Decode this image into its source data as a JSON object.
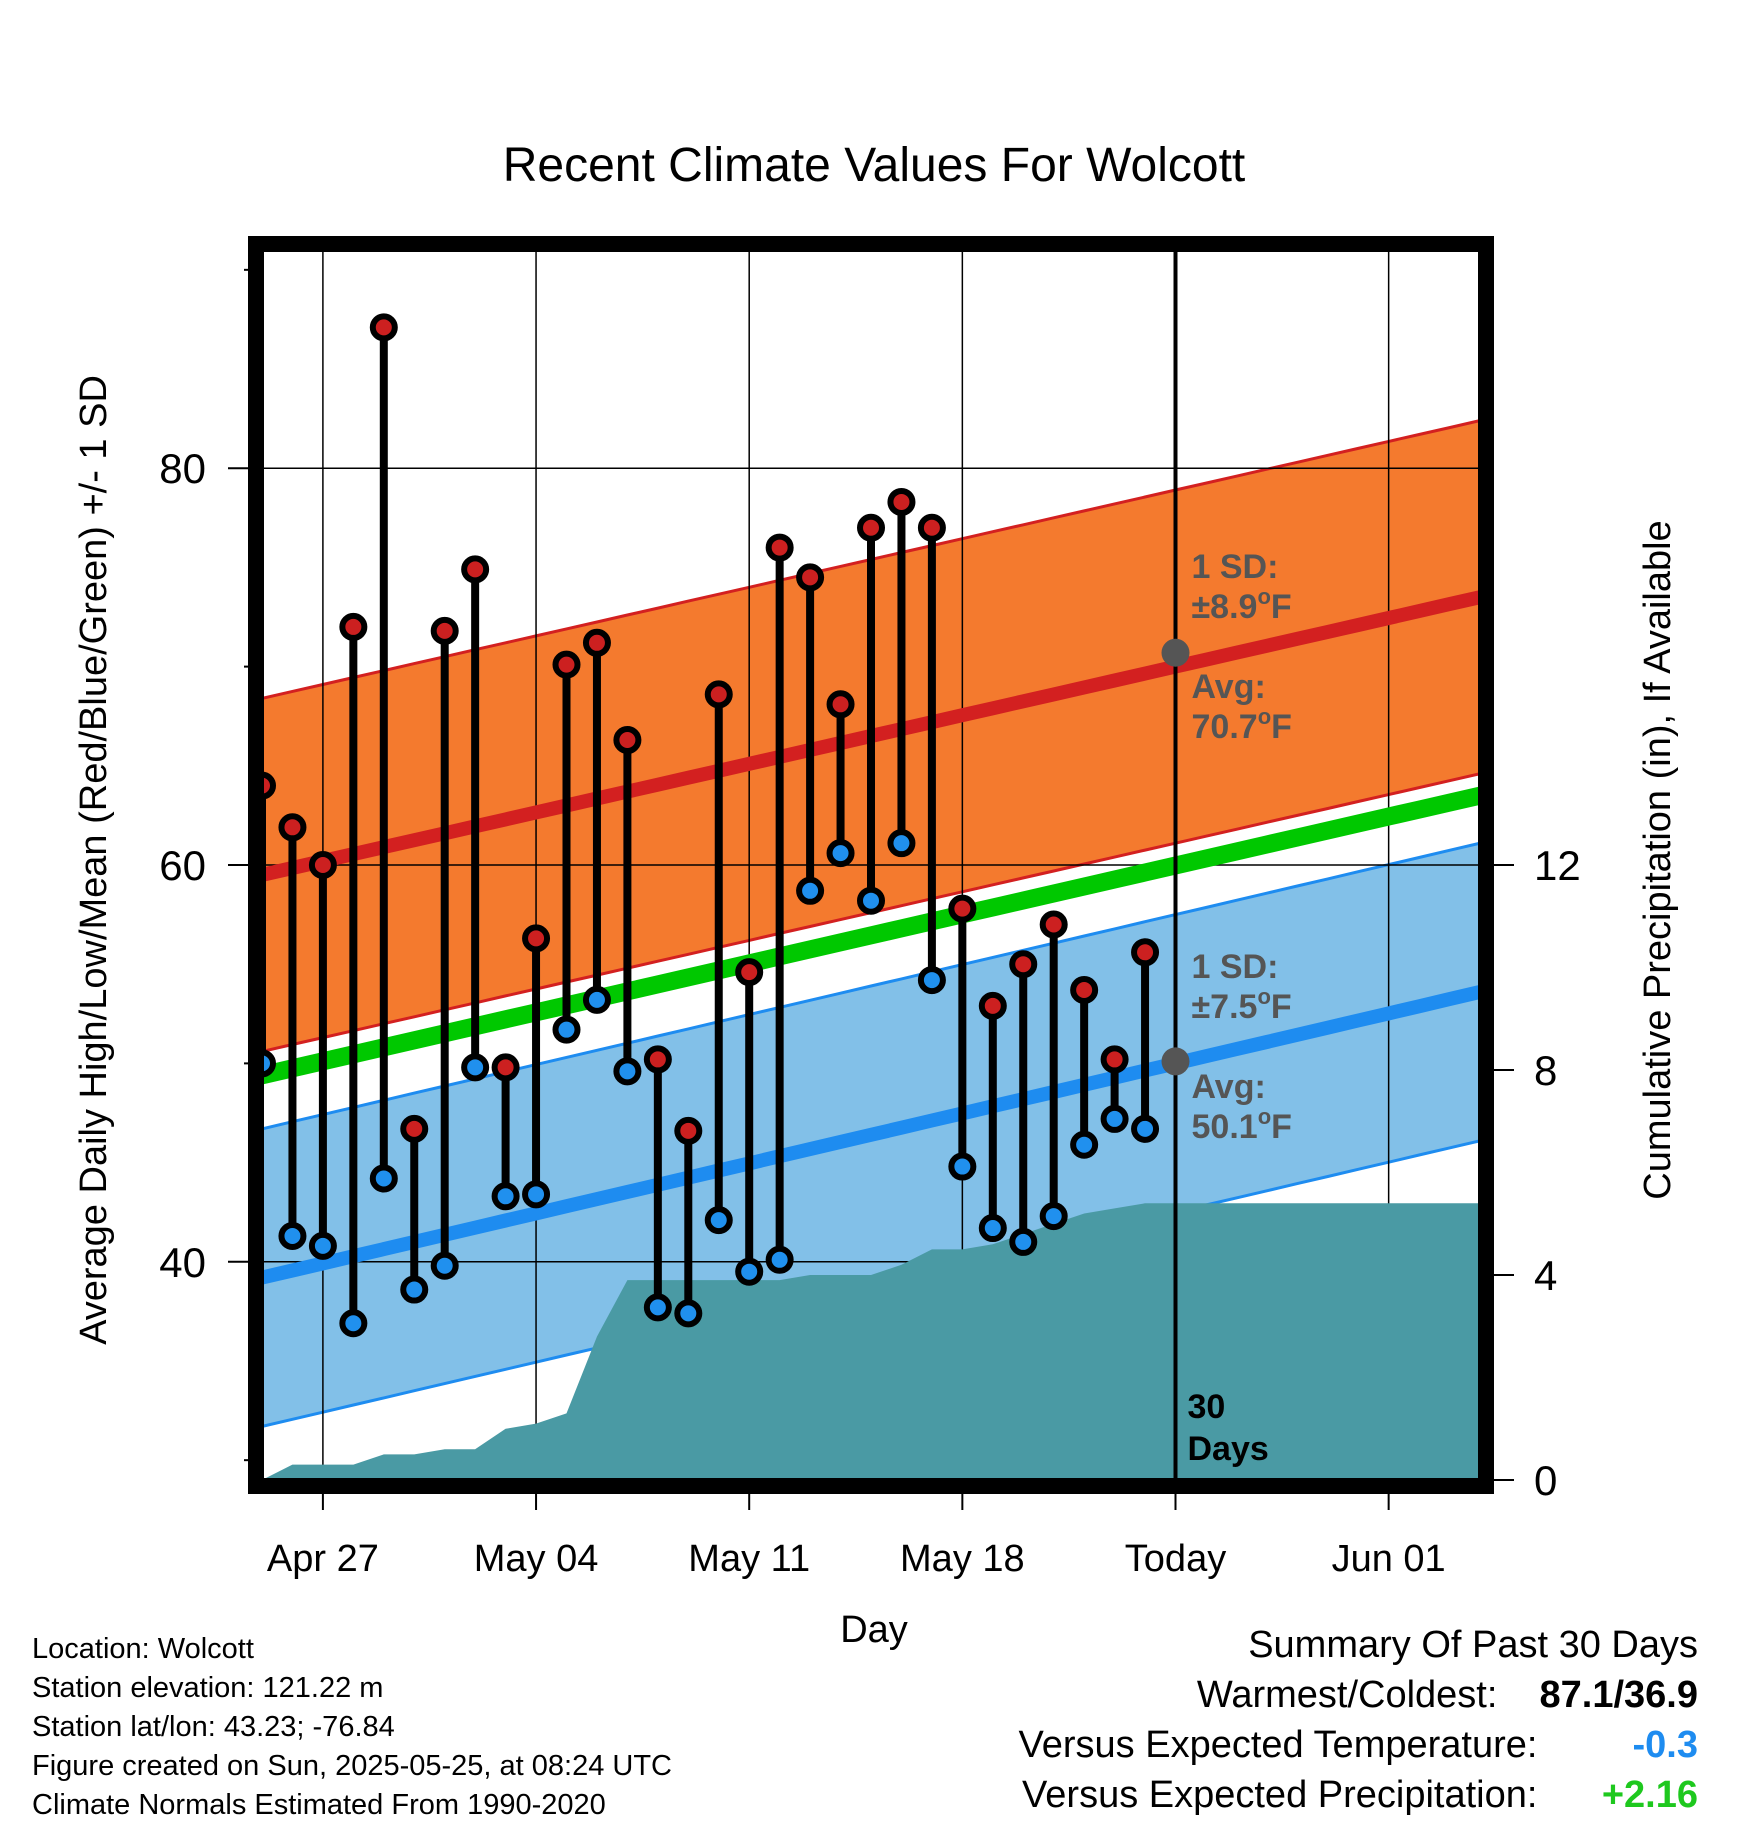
{
  "chart_data": {
    "type": "line",
    "title": "Recent Climate Values For Wolcott",
    "xlabel": "Day",
    "ylabel": "Average Daily High/Low/Mean (Red/Blue/Green) +/- 1 SD",
    "y2label": "Cumulative Precipitation (in), If Available",
    "ylim": [
      29,
      91
    ],
    "y2lim": [
      0,
      24
    ],
    "xlim": [
      -2,
      38
    ],
    "x_ticks": [
      {
        "x": 0,
        "label": "Apr 27"
      },
      {
        "x": 7,
        "label": "May 04"
      },
      {
        "x": 14,
        "label": "May 11"
      },
      {
        "x": 21,
        "label": "May 18"
      },
      {
        "x": 28,
        "label": "Today"
      },
      {
        "x": 35,
        "label": "Jun 01"
      }
    ],
    "y_ticks": [
      40,
      60,
      80
    ],
    "y2_ticks": [
      0,
      4,
      8,
      12
    ],
    "days": [
      -2,
      -1,
      0,
      1,
      2,
      3,
      4,
      5,
      6,
      7,
      8,
      9,
      10,
      11,
      12,
      13,
      14,
      15,
      16,
      17,
      18,
      19,
      20,
      21,
      22,
      23,
      24,
      25,
      26,
      27
    ],
    "highs": [
      64.0,
      61.9,
      60.0,
      72.0,
      87.1,
      46.7,
      71.8,
      74.9,
      49.8,
      56.3,
      70.1,
      71.2,
      66.3,
      50.2,
      46.6,
      68.6,
      54.6,
      76.0,
      74.5,
      68.1,
      77.0,
      78.3,
      77.0,
      57.8,
      52.9,
      55.0,
      57.0,
      53.7,
      50.2,
      55.6
    ],
    "lows": [
      50.0,
      41.3,
      40.8,
      36.9,
      44.2,
      38.6,
      39.8,
      49.8,
      43.3,
      43.4,
      51.7,
      53.2,
      49.6,
      37.7,
      37.4,
      42.1,
      39.5,
      40.1,
      58.7,
      60.6,
      58.2,
      61.1,
      54.2,
      44.8,
      41.7,
      41.0,
      42.3,
      45.9,
      47.2,
      46.7
    ],
    "normal_high": {
      "start": 59.5,
      "end": 73.5,
      "sd": 8.9
    },
    "normal_low": {
      "start": 39.2,
      "end": 53.6,
      "sd": 7.5
    },
    "normal_mean": {
      "start": 49.4,
      "end": 63.5
    },
    "precip_cumulative": [
      0,
      0.3,
      0.3,
      0.3,
      0.5,
      0.5,
      0.6,
      0.6,
      1.0,
      1.1,
      1.3,
      2.8,
      3.9,
      3.9,
      3.9,
      3.9,
      3.9,
      3.9,
      4.0,
      4.0,
      4.0,
      4.2,
      4.5,
      4.5,
      4.6,
      4.8,
      5.0,
      5.2,
      5.3,
      5.4,
      5.4,
      5.4
    ],
    "precip_days": [
      -2,
      -1,
      0,
      1,
      2,
      3,
      4,
      5,
      6,
      7,
      8,
      9,
      10,
      11,
      12,
      13,
      14,
      15,
      16,
      17,
      18,
      19,
      20,
      21,
      22,
      23,
      24,
      25,
      26,
      27,
      28,
      38
    ],
    "annotations": {
      "high_sd_label": "1 SD:",
      "high_sd_value": "±8.9",
      "high_avg_label": "Avg:",
      "high_avg_value": "70.7",
      "low_sd_label": "1 SD:",
      "low_sd_value": "±7.5",
      "low_avg_label": "Avg:",
      "low_avg_value": "50.1",
      "degree_unit": "o",
      "unit_f": "F",
      "days_label_1": "30",
      "days_label_2": "Days"
    },
    "grid": true,
    "colors": {
      "high_band": "#f47a2e",
      "high_line": "#d32020",
      "low_band": "#82c0e8",
      "low_line": "#1e8cf0",
      "mean_line": "#00c800",
      "precip": "#4a9aa4",
      "high_dot": "#cc2020",
      "low_dot": "#2090ee",
      "avg_marker": "#555555"
    }
  },
  "footer": {
    "location": "Location: Wolcott",
    "elevation": "Station elevation: 121.22 m",
    "latlon": "Station lat/lon: 43.23; -76.84",
    "created": "Figure created on Sun, 2025-05-25, at 08:24 UTC",
    "normals": "Climate Normals Estimated From 1990-2020"
  },
  "summary": {
    "heading": "Summary Of Past 30 Days",
    "warm_cold_label": "Warmest/Coldest:",
    "warm_cold_value": "87.1/36.9",
    "temp_label": "Versus Expected Temperature:",
    "temp_value": "-0.3",
    "temp_color": "#1e8cf0",
    "precip_label": "Versus Expected Precipitation:",
    "precip_value": "+2.16",
    "precip_color": "#1ec81e"
  }
}
